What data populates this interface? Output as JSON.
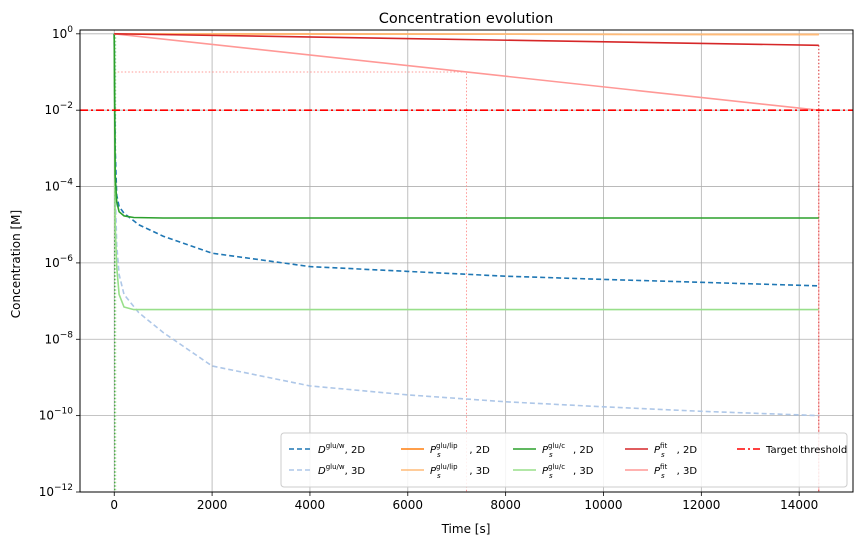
{
  "chart_data": {
    "type": "line",
    "title": "Concentration evolution",
    "xlabel": "Time [s]",
    "ylabel": "Concentration [M]",
    "xlim": [
      -700,
      15100
    ],
    "ylim_log10": [
      -12,
      0.1
    ],
    "yscale": "log",
    "grid": true,
    "x_ticks": [
      {
        "value": 0,
        "label": "0"
      },
      {
        "value": 2000,
        "label": "2000"
      },
      {
        "value": 4000,
        "label": "4000"
      },
      {
        "value": 6000,
        "label": "6000"
      },
      {
        "value": 8000,
        "label": "8000"
      },
      {
        "value": 10000,
        "label": "10000"
      },
      {
        "value": 12000,
        "label": "12000"
      },
      {
        "value": 14000,
        "label": "14000"
      }
    ],
    "y_ticks": [
      {
        "exp": 0,
        "base": "10",
        "sup": "0"
      },
      {
        "exp": -2,
        "base": "10",
        "sup": "−2"
      },
      {
        "exp": -4,
        "base": "10",
        "sup": "−4"
      },
      {
        "exp": -6,
        "base": "10",
        "sup": "−6"
      },
      {
        "exp": -8,
        "base": "10",
        "sup": "−8"
      },
      {
        "exp": -10,
        "base": "10",
        "sup": "−10"
      },
      {
        "exp": -12,
        "base": "10",
        "sup": "−12"
      }
    ],
    "legend_position": "lower-right",
    "series": [
      {
        "key": "D2",
        "legend_main": "D",
        "legend_sup": "glu/w",
        "legend_sub": "",
        "legend_suffix": ", 2D",
        "color": "#1f77b4",
        "dash": "5,3",
        "points": [
          [
            0,
            1.0
          ],
          [
            20,
            0.001
          ],
          [
            50,
            6e-05
          ],
          [
            100,
            3e-05
          ],
          [
            200,
            2e-05
          ],
          [
            500,
            1e-05
          ],
          [
            1000,
            5e-06
          ],
          [
            2000,
            1.8e-06
          ],
          [
            4000,
            8e-07
          ],
          [
            6000,
            6e-07
          ],
          [
            8000,
            4.5e-07
          ],
          [
            10000,
            3.7e-07
          ],
          [
            12000,
            3.1e-07
          ],
          [
            14400,
            2.5e-07
          ]
        ]
      },
      {
        "key": "D3",
        "legend_main": "D",
        "legend_sup": "glu/w",
        "legend_sub": "",
        "legend_suffix": ", 3D",
        "color": "#aec7e8",
        "dash": "5,3",
        "points": [
          [
            0,
            1.0
          ],
          [
            20,
            0.0001
          ],
          [
            50,
            3e-06
          ],
          [
            100,
            5e-07
          ],
          [
            200,
            1.5e-07
          ],
          [
            500,
            5e-08
          ],
          [
            1000,
            1.5e-08
          ],
          [
            2000,
            2e-09
          ],
          [
            4000,
            6e-10
          ],
          [
            6000,
            3.5e-10
          ],
          [
            8000,
            2.3e-10
          ],
          [
            10000,
            1.7e-10
          ],
          [
            12000,
            1.3e-10
          ],
          [
            14400,
            1e-10
          ]
        ]
      },
      {
        "key": "L2",
        "legend_main": "P",
        "legend_sup": "glu/lip",
        "legend_sub": "s",
        "legend_suffix": ", 2D",
        "color": "#ff7f0e",
        "dash": "",
        "points": [
          [
            0,
            1.0
          ],
          [
            14400,
            0.96
          ]
        ]
      },
      {
        "key": "L3",
        "legend_main": "P",
        "legend_sup": "glu/lip",
        "legend_sub": "s",
        "legend_suffix": ", 3D",
        "color": "#ffbb78",
        "dash": "",
        "points": [
          [
            0,
            1.0
          ],
          [
            14400,
            0.96
          ]
        ]
      },
      {
        "key": "C2",
        "legend_main": "P",
        "legend_sup": "glu/c",
        "legend_sub": "s",
        "legend_suffix": ", 2D",
        "color": "#2ca02c",
        "dash": "",
        "points": [
          [
            0,
            1.0
          ],
          [
            20,
            0.0002
          ],
          [
            50,
            4e-05
          ],
          [
            100,
            2.2e-05
          ],
          [
            200,
            1.7e-05
          ],
          [
            400,
            1.55e-05
          ],
          [
            1000,
            1.5e-05
          ],
          [
            14400,
            1.5e-05
          ]
        ]
      },
      {
        "key": "C3",
        "legend_main": "P",
        "legend_sup": "glu/c",
        "legend_sub": "s",
        "legend_suffix": ", 3D",
        "color": "#98df8a",
        "dash": "",
        "points": [
          [
            0,
            1.0
          ],
          [
            20,
            1e-05
          ],
          [
            50,
            8e-07
          ],
          [
            100,
            1.5e-07
          ],
          [
            200,
            7e-08
          ],
          [
            400,
            6e-08
          ],
          [
            1000,
            6e-08
          ],
          [
            14400,
            6e-08
          ]
        ]
      },
      {
        "key": "F2",
        "legend_main": "P",
        "legend_sup": "fit",
        "legend_sub": "s",
        "legend_suffix": ", 2D",
        "color": "#d62728",
        "dash": "",
        "points": [
          [
            0,
            1.0
          ],
          [
            14400,
            0.5
          ]
        ]
      },
      {
        "key": "F3",
        "legend_main": "P",
        "legend_sup": "fit",
        "legend_sub": "s",
        "legend_suffix": ", 3D",
        "color": "#ff9896",
        "dash": "",
        "points": [
          [
            0,
            1.0
          ],
          [
            14400,
            0.01
          ]
        ]
      },
      {
        "key": "T",
        "legend_main": "Target threshold",
        "legend_sup": "",
        "legend_sub": "",
        "legend_suffix": "",
        "color": "#ff0000",
        "dash": "8,3,2,3",
        "points": [
          [
            -700,
            0.01
          ],
          [
            15100,
            0.01
          ]
        ]
      }
    ],
    "reference_lines": [
      {
        "color": "#ff9896",
        "points": [
          [
            0,
            0.1
          ],
          [
            7200,
            0.1
          ],
          [
            7200,
            1e-12
          ]
        ]
      },
      {
        "color": "#ff9896",
        "points": [
          [
            14400,
            0.01
          ],
          [
            14400,
            1e-12
          ]
        ]
      },
      {
        "color": "#d62728",
        "points": [
          [
            14400,
            0.5
          ],
          [
            14400,
            1e-12
          ]
        ]
      },
      {
        "color": "#2ca02c",
        "points": [
          [
            10,
            1.0
          ],
          [
            10,
            1e-12
          ]
        ]
      },
      {
        "color": "#98df8a",
        "points": [
          [
            30,
            1.0
          ],
          [
            30,
            1e-12
          ]
        ]
      }
    ]
  }
}
